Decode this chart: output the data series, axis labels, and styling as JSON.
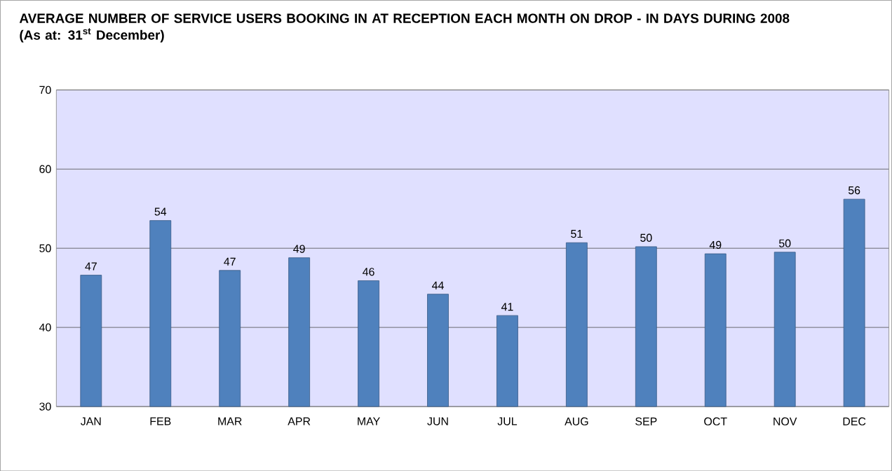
{
  "chart_data": {
    "type": "bar",
    "title": "AVERAGE NUMBER OF SERVICE USERS  BOOKING IN AT RECEPTION EACH MONTH ON DROP - IN DAYS DURING 2008  (As at:  31$^{st}$ December)",
    "categories": [
      "JAN",
      "FEB",
      "MAR",
      "APR",
      "MAY",
      "JUN",
      "JUL",
      "AUG",
      "SEP",
      "OCT",
      "NOV",
      "DEC"
    ],
    "values": [
      46.6,
      53.5,
      47.2,
      48.8,
      45.9,
      44.2,
      41.5,
      50.7,
      50.2,
      49.3,
      49.5,
      56.2
    ],
    "value_labels": [
      "47",
      "54",
      "47",
      "49",
      "46",
      "44",
      "41",
      "51",
      "50",
      "49",
      "50",
      "56"
    ],
    "color": "#4f81bd",
    "ylim": [
      30,
      70
    ],
    "yticks": [
      30,
      40,
      50,
      60,
      70
    ],
    "grid": "y"
  }
}
